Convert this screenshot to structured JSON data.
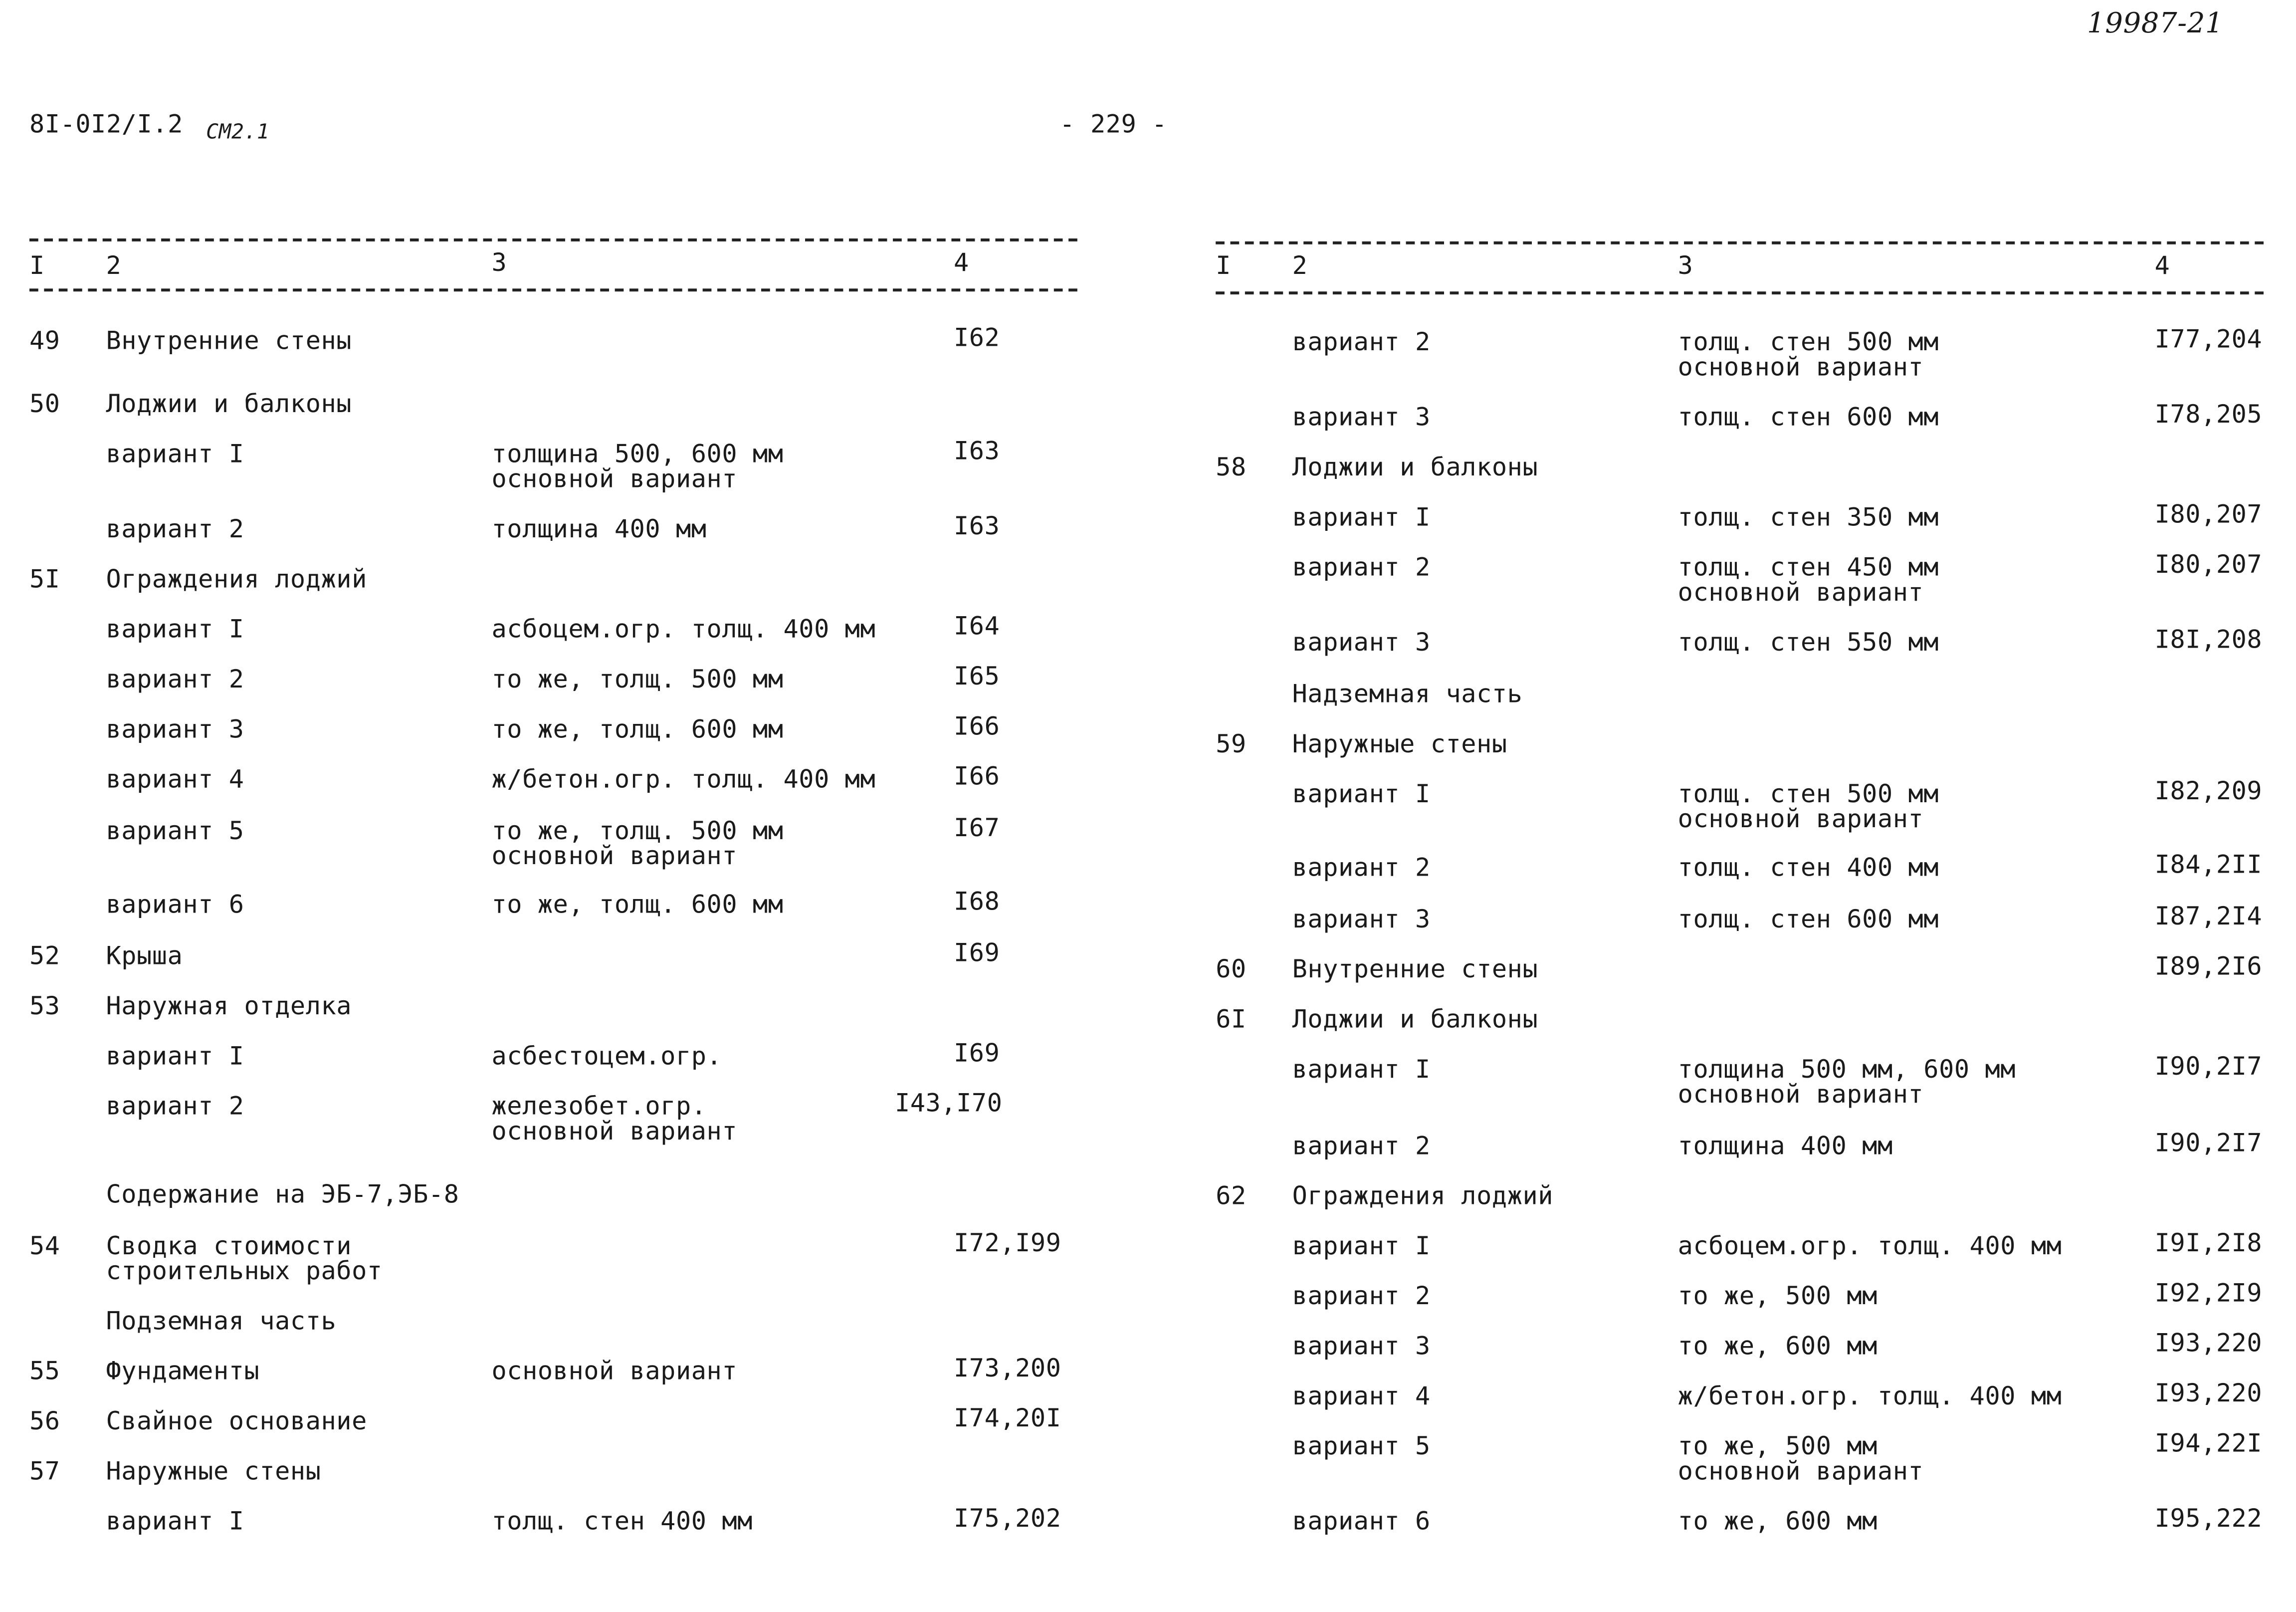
{
  "header": {
    "doc_code": "8I-0I2/I.2",
    "doc_suffix": "СМ2.1",
    "page_number": "- 229 -",
    "handwritten_number": "19987-21"
  },
  "table_header": {
    "col1": "I",
    "col2": "2",
    "col3": "3",
    "col4": "4"
  },
  "left": [
    {
      "num": "49",
      "name": "Внутренние стены",
      "desc": "",
      "page": "I62"
    },
    {
      "num": "50",
      "name": "Лоджии и балконы",
      "desc": "",
      "page": ""
    },
    {
      "num": "",
      "name": "вариант I",
      "desc": "толщина 500, 600 мм\nосновной вариант",
      "page": "I63"
    },
    {
      "num": "",
      "name": "вариант 2",
      "desc": "толщина 400 мм",
      "page": "I63"
    },
    {
      "num": "5I",
      "name": "Ограждения лоджий",
      "desc": "",
      "page": ""
    },
    {
      "num": "",
      "name": "вариант I",
      "desc": "асбоцем.огр. толщ. 400 мм",
      "page": "I64"
    },
    {
      "num": "",
      "name": "вариант 2",
      "desc": "то же, толщ. 500 мм",
      "page": "I65"
    },
    {
      "num": "",
      "name": "вариант 3",
      "desc": "то же, толщ. 600 мм",
      "page": "I66"
    },
    {
      "num": "",
      "name": "вариант 4",
      "desc": "ж/бетон.огр. толщ. 400 мм",
      "page": "I66"
    },
    {
      "num": "",
      "name": "вариант 5",
      "desc": "то же, толщ. 500 мм\nосновной вариант",
      "page": "I67"
    },
    {
      "num": "",
      "name": "вариант 6",
      "desc": "то же, толщ. 600 мм",
      "page": "I68"
    },
    {
      "num": "52",
      "name": "Крыша",
      "desc": "",
      "page": "I69"
    },
    {
      "num": "53",
      "name": "Наружная отделка",
      "desc": "",
      "page": ""
    },
    {
      "num": "",
      "name": "вариант I",
      "desc": "асбестоцем.огр.",
      "page": "I69"
    },
    {
      "num": "",
      "name": "вариант 2",
      "desc": "железобет.огр.\nосновной вариант",
      "page": "I43,I70"
    },
    {
      "num": "",
      "name": "Содержание на ЭБ-7,ЭБ-8",
      "desc": "",
      "page": ""
    },
    {
      "num": "54",
      "name": "Сводка стоимости\nстроительных работ",
      "desc": "",
      "page": "I72,I99"
    },
    {
      "num": "",
      "name": "Подземная часть",
      "desc": "",
      "page": ""
    },
    {
      "num": "55",
      "name": "Фундаменты",
      "desc": "основной вариант",
      "page": "I73,200"
    },
    {
      "num": "56",
      "name": "Свайное основание",
      "desc": "",
      "page": "I74,20I"
    },
    {
      "num": "57",
      "name": "Наружные стены",
      "desc": "",
      "page": ""
    },
    {
      "num": "",
      "name": "вариант I",
      "desc": "толщ. стен 400 мм",
      "page": "I75,202"
    }
  ],
  "right": [
    {
      "num": "",
      "name": "вариант 2",
      "desc": "толщ. стен 500 мм\nосновной вариант",
      "page": "I77,204"
    },
    {
      "num": "",
      "name": "вариант 3",
      "desc": "толщ. стен 600 мм",
      "page": "I78,205"
    },
    {
      "num": "58",
      "name": "Лоджии и балконы",
      "desc": "",
      "page": ""
    },
    {
      "num": "",
      "name": "вариант I",
      "desc": "толщ. стен 350 мм",
      "page": "I80,207"
    },
    {
      "num": "",
      "name": "вариант 2",
      "desc": "толщ. стен 450 мм\nосновной вариант",
      "page": "I80,207"
    },
    {
      "num": "",
      "name": "вариант 3",
      "desc": "толщ. стен 550 мм",
      "page": "I8I,208"
    },
    {
      "num": "",
      "name": "Надземная часть",
      "desc": "",
      "page": ""
    },
    {
      "num": "59",
      "name": "Наружные стены",
      "desc": "",
      "page": ""
    },
    {
      "num": "",
      "name": "вариант I",
      "desc": "толщ. стен 500 мм\nосновной вариант",
      "page": "I82,209"
    },
    {
      "num": "",
      "name": "вариант 2",
      "desc": "толщ. стен 400 мм",
      "page": "I84,2II"
    },
    {
      "num": "",
      "name": "вариант 3",
      "desc": "толщ. стен 600 мм",
      "page": "I87,2I4"
    },
    {
      "num": "60",
      "name": "Внутренние стены",
      "desc": "",
      "page": "I89,2I6"
    },
    {
      "num": "6I",
      "name": "Лоджии и балконы",
      "desc": "",
      "page": ""
    },
    {
      "num": "",
      "name": "вариант I",
      "desc": "толщина 500 мм, 600 мм\nосновной вариант",
      "page": "I90,2I7"
    },
    {
      "num": "",
      "name": "вариант 2",
      "desc": "толщина 400 мм",
      "page": "I90,2I7"
    },
    {
      "num": "62",
      "name": "Ограждения лоджий",
      "desc": "",
      "page": ""
    },
    {
      "num": "",
      "name": "вариант I",
      "desc": "асбоцем.огр. толщ. 400 мм",
      "page": "I9I,2I8"
    },
    {
      "num": "",
      "name": "вариант 2",
      "desc": "то же, 500 мм",
      "page": "I92,2I9"
    },
    {
      "num": "",
      "name": "вариант 3",
      "desc": "то же, 600 мм",
      "page": "I93,220"
    },
    {
      "num": "",
      "name": "вариант 4",
      "desc": "ж/бетон.огр. толщ. 400 мм",
      "page": "I93,220"
    },
    {
      "num": "",
      "name": "вариант 5",
      "desc": "то же, 500 мм\n основной вариант",
      "page": "I94,22I"
    },
    {
      "num": "",
      "name": "вариант 6",
      "desc": "то же, 600 мм",
      "page": "I95,222"
    }
  ]
}
